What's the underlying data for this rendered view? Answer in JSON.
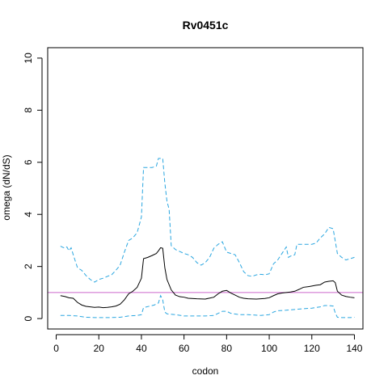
{
  "chart_data": {
    "type": "line",
    "title": "Rv0451c",
    "xlabel": "codon",
    "ylabel": "omega (dN/dS)",
    "xlim": [
      -4,
      144
    ],
    "ylim": [
      -0.4,
      10.4
    ],
    "xticks": [
      0,
      20,
      40,
      60,
      80,
      100,
      120,
      140
    ],
    "yticks": [
      0,
      2,
      4,
      6,
      8,
      10
    ],
    "grid": false,
    "reference_line": {
      "y": 1,
      "color": "#cc66cc"
    },
    "series": [
      {
        "role": "estimate",
        "color": "#000000",
        "style": "solid",
        "points": [
          [
            2,
            0.88
          ],
          [
            4,
            0.85
          ],
          [
            6,
            0.8
          ],
          [
            8,
            0.78
          ],
          [
            10,
            0.62
          ],
          [
            12,
            0.52
          ],
          [
            14,
            0.47
          ],
          [
            16,
            0.45
          ],
          [
            18,
            0.43
          ],
          [
            20,
            0.44
          ],
          [
            22,
            0.42
          ],
          [
            24,
            0.43
          ],
          [
            26,
            0.45
          ],
          [
            28,
            0.48
          ],
          [
            30,
            0.55
          ],
          [
            32,
            0.72
          ],
          [
            34,
            0.95
          ],
          [
            36,
            1.05
          ],
          [
            38,
            1.2
          ],
          [
            40,
            1.55
          ],
          [
            41,
            2.3
          ],
          [
            43,
            2.35
          ],
          [
            45,
            2.42
          ],
          [
            47,
            2.5
          ],
          [
            48,
            2.6
          ],
          [
            49,
            2.72
          ],
          [
            50,
            2.7
          ],
          [
            51,
            1.95
          ],
          [
            52,
            1.5
          ],
          [
            54,
            1.1
          ],
          [
            56,
            0.9
          ],
          [
            58,
            0.84
          ],
          [
            60,
            0.82
          ],
          [
            62,
            0.78
          ],
          [
            66,
            0.76
          ],
          [
            70,
            0.75
          ],
          [
            74,
            0.82
          ],
          [
            76,
            0.95
          ],
          [
            78,
            1.05
          ],
          [
            80,
            1.08
          ],
          [
            82,
            0.98
          ],
          [
            84,
            0.9
          ],
          [
            86,
            0.82
          ],
          [
            88,
            0.78
          ],
          [
            90,
            0.76
          ],
          [
            94,
            0.75
          ],
          [
            98,
            0.77
          ],
          [
            100,
            0.8
          ],
          [
            102,
            0.88
          ],
          [
            104,
            0.95
          ],
          [
            106,
            0.98
          ],
          [
            108,
            1.0
          ],
          [
            110,
            1.02
          ],
          [
            112,
            1.05
          ],
          [
            114,
            1.12
          ],
          [
            116,
            1.2
          ],
          [
            118,
            1.22
          ],
          [
            120,
            1.25
          ],
          [
            122,
            1.28
          ],
          [
            124,
            1.3
          ],
          [
            126,
            1.4
          ],
          [
            128,
            1.43
          ],
          [
            130,
            1.45
          ],
          [
            131,
            1.38
          ],
          [
            132,
            1.05
          ],
          [
            134,
            0.9
          ],
          [
            136,
            0.85
          ],
          [
            138,
            0.82
          ],
          [
            140,
            0.8
          ]
        ]
      },
      {
        "role": "upper-bound",
        "color": "#2aa6e0",
        "style": "dashed",
        "points": [
          [
            2,
            2.78
          ],
          [
            4,
            2.7
          ],
          [
            5,
            2.75
          ],
          [
            6,
            2.6
          ],
          [
            7,
            2.72
          ],
          [
            8,
            2.45
          ],
          [
            9,
            2.2
          ],
          [
            10,
            1.95
          ],
          [
            12,
            1.85
          ],
          [
            14,
            1.65
          ],
          [
            16,
            1.5
          ],
          [
            18,
            1.4
          ],
          [
            20,
            1.5
          ],
          [
            22,
            1.55
          ],
          [
            24,
            1.62
          ],
          [
            26,
            1.68
          ],
          [
            28,
            1.85
          ],
          [
            30,
            2.05
          ],
          [
            32,
            2.55
          ],
          [
            34,
            3.0
          ],
          [
            36,
            3.1
          ],
          [
            38,
            3.3
          ],
          [
            40,
            3.9
          ],
          [
            41,
            5.8
          ],
          [
            43,
            5.8
          ],
          [
            45,
            5.8
          ],
          [
            47,
            5.85
          ],
          [
            48,
            6.15
          ],
          [
            50,
            6.15
          ],
          [
            51,
            5.2
          ],
          [
            52,
            4.5
          ],
          [
            53,
            4.2
          ],
          [
            54,
            2.8
          ],
          [
            56,
            2.65
          ],
          [
            60,
            2.5
          ],
          [
            62,
            2.45
          ],
          [
            64,
            2.35
          ],
          [
            66,
            2.15
          ],
          [
            68,
            2.05
          ],
          [
            70,
            2.15
          ],
          [
            72,
            2.35
          ],
          [
            74,
            2.7
          ],
          [
            76,
            2.85
          ],
          [
            78,
            2.95
          ],
          [
            80,
            2.55
          ],
          [
            84,
            2.45
          ],
          [
            86,
            2.15
          ],
          [
            88,
            1.8
          ],
          [
            90,
            1.65
          ],
          [
            92,
            1.62
          ],
          [
            94,
            1.68
          ],
          [
            96,
            1.7
          ],
          [
            98,
            1.68
          ],
          [
            100,
            1.72
          ],
          [
            102,
            2.1
          ],
          [
            104,
            2.25
          ],
          [
            106,
            2.5
          ],
          [
            108,
            2.75
          ],
          [
            109,
            2.35
          ],
          [
            110,
            2.4
          ],
          [
            112,
            2.45
          ],
          [
            113,
            2.85
          ],
          [
            116,
            2.85
          ],
          [
            120,
            2.85
          ],
          [
            122,
            2.9
          ],
          [
            124,
            3.1
          ],
          [
            126,
            3.25
          ],
          [
            128,
            3.5
          ],
          [
            130,
            3.45
          ],
          [
            132,
            2.5
          ],
          [
            134,
            2.35
          ],
          [
            136,
            2.25
          ],
          [
            138,
            2.3
          ],
          [
            140,
            2.35
          ]
        ]
      },
      {
        "role": "lower-bound",
        "color": "#2aa6e0",
        "style": "dashed",
        "points": [
          [
            2,
            0.12
          ],
          [
            6,
            0.12
          ],
          [
            10,
            0.1
          ],
          [
            14,
            0.05
          ],
          [
            18,
            0.04
          ],
          [
            22,
            0.04
          ],
          [
            26,
            0.04
          ],
          [
            30,
            0.05
          ],
          [
            34,
            0.1
          ],
          [
            38,
            0.12
          ],
          [
            40,
            0.15
          ],
          [
            41,
            0.42
          ],
          [
            44,
            0.48
          ],
          [
            46,
            0.52
          ],
          [
            48,
            0.6
          ],
          [
            49,
            0.88
          ],
          [
            50,
            0.72
          ],
          [
            51,
            0.25
          ],
          [
            52,
            0.18
          ],
          [
            56,
            0.15
          ],
          [
            60,
            0.1
          ],
          [
            66,
            0.1
          ],
          [
            70,
            0.1
          ],
          [
            74,
            0.12
          ],
          [
            76,
            0.2
          ],
          [
            78,
            0.28
          ],
          [
            80,
            0.28
          ],
          [
            82,
            0.2
          ],
          [
            86,
            0.15
          ],
          [
            90,
            0.15
          ],
          [
            96,
            0.12
          ],
          [
            100,
            0.15
          ],
          [
            102,
            0.25
          ],
          [
            104,
            0.3
          ],
          [
            108,
            0.32
          ],
          [
            112,
            0.35
          ],
          [
            116,
            0.38
          ],
          [
            120,
            0.4
          ],
          [
            124,
            0.45
          ],
          [
            126,
            0.5
          ],
          [
            128,
            0.5
          ],
          [
            130,
            0.48
          ],
          [
            131,
            0.22
          ],
          [
            132,
            0.05
          ],
          [
            134,
            0.04
          ],
          [
            138,
            0.04
          ],
          [
            140,
            0.05
          ]
        ]
      }
    ]
  }
}
